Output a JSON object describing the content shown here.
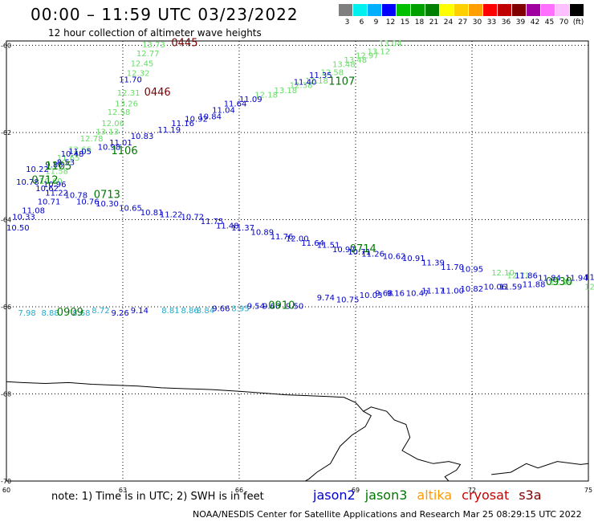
{
  "header": {
    "title": "00:00 – 11:59 UTC 03/23/2022",
    "subtitle": "12 hour collection of altimeter wave heights"
  },
  "colorscale": {
    "colors": [
      "#7f7f7f",
      "#00f0f0",
      "#00b0ff",
      "#0000ff",
      "#00c000",
      "#00a000",
      "#008000",
      "#ffff00",
      "#ffd000",
      "#ffa000",
      "#ff0000",
      "#c00000",
      "#800000",
      "#a000a0",
      "#ff70ff",
      "#ffc0ff",
      "#000000"
    ],
    "labels": [
      "3",
      "6",
      "9",
      "12",
      "15",
      "18",
      "21",
      "24",
      "27",
      "30",
      "33",
      "36",
      "39",
      "42",
      "45",
      "70",
      "(ft)"
    ]
  },
  "map": {
    "lat_labels": [
      "-60",
      "-62",
      "-64",
      "-66",
      "-68",
      "-70"
    ],
    "lon_labels": [
      "60",
      "63",
      "66",
      "69",
      "72",
      "75"
    ],
    "track_colors": {
      "jason2": "#0000c8",
      "jason3": "#007800",
      "altika": "#ff9900",
      "cryosat": "#c80000",
      "s3a": "#7a0000",
      "light": "#66dd66",
      "cyan": "#22aacc"
    },
    "time_labels": [
      {
        "text": "0445",
        "lon": 64.25,
        "lat": -60.02,
        "color": "s3a"
      },
      {
        "text": "0446",
        "lon": 63.55,
        "lat": -61.15,
        "color": "s3a"
      },
      {
        "text": "1107",
        "lon": 68.3,
        "lat": -60.9,
        "color": "jason3"
      },
      {
        "text": "1106",
        "lon": 62.7,
        "lat": -62.5,
        "color": "jason3"
      },
      {
        "text": "1105",
        "lon": 61.0,
        "lat": -62.85,
        "color": "jason3"
      },
      {
        "text": "0712",
        "lon": 60.65,
        "lat": -63.17,
        "color": "jason3"
      },
      {
        "text": "0713",
        "lon": 62.25,
        "lat": -63.5,
        "color": "jason3"
      },
      {
        "text": "0714",
        "lon": 68.85,
        "lat": -64.75,
        "color": "jason3"
      },
      {
        "text": "0909",
        "lon": 61.3,
        "lat": -66.2,
        "color": "jason3"
      },
      {
        "text": "0910",
        "lon": 66.75,
        "lat": -66.05,
        "color": "jason3"
      },
      {
        "text": "0930",
        "lon": 73.9,
        "lat": -65.5,
        "color": "jason3"
      }
    ],
    "tracks": [
      {
        "color": "light",
        "points": [
          {
            "lon": 63.5,
            "lat": -60.05,
            "v": "13.73"
          },
          {
            "lon": 63.35,
            "lat": -60.25,
            "v": "12.77"
          },
          {
            "lon": 63.2,
            "lat": -60.48,
            "v": "12.45"
          },
          {
            "lon": 63.1,
            "lat": -60.7,
            "v": "12.32"
          },
          {
            "lon": 62.85,
            "lat": -61.15,
            "v": "12.31"
          },
          {
            "lon": 62.8,
            "lat": -61.4,
            "v": "13.26"
          },
          {
            "lon": 62.6,
            "lat": -61.6,
            "v": "12.58"
          },
          {
            "lon": 62.45,
            "lat": -61.85,
            "v": "12.06"
          },
          {
            "lon": 62.3,
            "lat": -62.05,
            "v": "13.13"
          },
          {
            "lon": 61.9,
            "lat": -62.2,
            "v": "12.78"
          },
          {
            "lon": 61.6,
            "lat": -62.45,
            "v": "12.66"
          },
          {
            "lon": 61.3,
            "lat": -62.65,
            "v": "11.65"
          },
          {
            "lon": 61.0,
            "lat": -62.95,
            "v": "11.58"
          },
          {
            "lon": 60.85,
            "lat": -63.18,
            "v": "10.60"
          },
          {
            "lon": 66.4,
            "lat": -61.2,
            "v": "12.18"
          },
          {
            "lon": 66.9,
            "lat": -61.1,
            "v": "13.18"
          },
          {
            "lon": 67.3,
            "lat": -60.98,
            "v": "12.38"
          },
          {
            "lon": 67.7,
            "lat": -60.88,
            "v": "12.18"
          },
          {
            "lon": 68.1,
            "lat": -60.68,
            "v": "12.58"
          },
          {
            "lon": 68.4,
            "lat": -60.5,
            "v": "13.48"
          },
          {
            "lon": 68.7,
            "lat": -60.4,
            "v": "13.48"
          },
          {
            "lon": 69.0,
            "lat": -60.3,
            "v": "12.97"
          },
          {
            "lon": 69.3,
            "lat": -60.2,
            "v": "13.12"
          },
          {
            "lon": 69.6,
            "lat": -60.02,
            "v": "13.04"
          },
          {
            "lon": 72.5,
            "lat": -65.28,
            "v": "12.10"
          },
          {
            "lon": 72.9,
            "lat": -65.35,
            "v": "12.71"
          },
          {
            "lon": 74.0,
            "lat": -65.5,
            "v": "11.49"
          },
          {
            "lon": 74.9,
            "lat": -65.6,
            "v": "12.3"
          }
        ]
      },
      {
        "color": "jason2",
        "points": [
          {
            "lon": 62.9,
            "lat": -60.85,
            "v": "11.70"
          },
          {
            "lon": 63.2,
            "lat": -62.15,
            "v": "10.83"
          },
          {
            "lon": 62.65,
            "lat": -62.3,
            "v": "11.01"
          },
          {
            "lon": 62.35,
            "lat": -62.4,
            "v": "10.98"
          },
          {
            "lon": 61.6,
            "lat": -62.5,
            "v": "11.05"
          },
          {
            "lon": 61.4,
            "lat": -62.55,
            "v": "10.48"
          },
          {
            "lon": 63.9,
            "lat": -62.0,
            "v": "11.19"
          },
          {
            "lon": 64.25,
            "lat": -61.85,
            "v": "11.16"
          },
          {
            "lon": 64.6,
            "lat": -61.75,
            "v": "10.92"
          },
          {
            "lon": 64.95,
            "lat": -61.7,
            "v": "10.84"
          },
          {
            "lon": 65.3,
            "lat": -61.55,
            "v": "11.04"
          },
          {
            "lon": 65.6,
            "lat": -61.4,
            "v": "11.64"
          },
          {
            "lon": 66.0,
            "lat": -61.3,
            "v": "11.09"
          },
          {
            "lon": 67.4,
            "lat": -60.9,
            "v": "11.40"
          },
          {
            "lon": 67.8,
            "lat": -60.75,
            "v": "11.35"
          },
          {
            "lon": 60.5,
            "lat": -62.9,
            "v": "10.22"
          },
          {
            "lon": 61.0,
            "lat": -62.8,
            "v": "9.88"
          },
          {
            "lon": 61.3,
            "lat": -62.75,
            "v": "8.53"
          },
          {
            "lon": 60.25,
            "lat": -63.2,
            "v": "10.78"
          },
          {
            "lon": 60.95,
            "lat": -63.25,
            "v": "10.96"
          },
          {
            "lon": 60.75,
            "lat": -63.35,
            "v": "10.62"
          },
          {
            "lon": 61.0,
            "lat": -63.45,
            "v": "11.22"
          },
          {
            "lon": 61.5,
            "lat": -63.5,
            "v": "10.78"
          },
          {
            "lon": 61.8,
            "lat": -63.65,
            "v": "10.76"
          },
          {
            "lon": 60.8,
            "lat": -63.65,
            "v": "10.71"
          },
          {
            "lon": 62.3,
            "lat": -63.7,
            "v": "10.30"
          },
          {
            "lon": 62.9,
            "lat": -63.8,
            "v": "10.65"
          },
          {
            "lon": 63.45,
            "lat": -63.9,
            "v": "10.81"
          },
          {
            "lon": 63.95,
            "lat": -63.95,
            "v": "11.22"
          },
          {
            "lon": 64.5,
            "lat": -64.0,
            "v": "10.72"
          },
          {
            "lon": 65.0,
            "lat": -64.1,
            "v": "11.75"
          },
          {
            "lon": 65.4,
            "lat": -64.2,
            "v": "11.48"
          },
          {
            "lon": 65.8,
            "lat": -64.25,
            "v": "11.37"
          },
          {
            "lon": 66.3,
            "lat": -64.35,
            "v": "10.89"
          },
          {
            "lon": 66.8,
            "lat": -64.45,
            "v": "11.76"
          },
          {
            "lon": 67.2,
            "lat": -64.5,
            "v": "12.00"
          },
          {
            "lon": 67.6,
            "lat": -64.6,
            "v": "11.64"
          },
          {
            "lon": 68.0,
            "lat": -64.65,
            "v": "11.51"
          },
          {
            "lon": 68.4,
            "lat": -64.75,
            "v": "10.97"
          },
          {
            "lon": 68.8,
            "lat": -64.8,
            "v": "10.71"
          },
          {
            "lon": 69.15,
            "lat": -64.85,
            "v": "11.26"
          },
          {
            "lon": 69.7,
            "lat": -64.9,
            "v": "10.62"
          },
          {
            "lon": 70.2,
            "lat": -64.95,
            "v": "10.91"
          },
          {
            "lon": 70.7,
            "lat": -65.05,
            "v": "11.39"
          },
          {
            "lon": 71.2,
            "lat": -65.15,
            "v": "11.70"
          },
          {
            "lon": 71.7,
            "lat": -65.2,
            "v": "10.95"
          },
          {
            "lon": 60.4,
            "lat": -63.85,
            "v": "11.08"
          },
          {
            "lon": 60.15,
            "lat": -64.0,
            "v": "10.33"
          },
          {
            "lon": 60.0,
            "lat": -64.25,
            "v": "10.50"
          },
          {
            "lon": 68.0,
            "lat": -65.85,
            "v": "9.74"
          },
          {
            "lon": 68.5,
            "lat": -65.9,
            "v": "10.75"
          },
          {
            "lon": 69.1,
            "lat": -65.8,
            "v": "10.03"
          },
          {
            "lon": 69.5,
            "lat": -65.75,
            "v": "9.68"
          },
          {
            "lon": 69.8,
            "lat": -65.75,
            "v": "9.16"
          },
          {
            "lon": 70.3,
            "lat": -65.75,
            "v": "10.47"
          },
          {
            "lon": 70.7,
            "lat": -65.7,
            "v": "11.17"
          },
          {
            "lon": 71.2,
            "lat": -65.7,
            "v": "11.00"
          },
          {
            "lon": 71.7,
            "lat": -65.65,
            "v": "10.82"
          },
          {
            "lon": 72.3,
            "lat": -65.6,
            "v": "10.06"
          },
          {
            "lon": 72.7,
            "lat": -65.6,
            "v": "11.59"
          },
          {
            "lon": 73.3,
            "lat": -65.55,
            "v": "11.88"
          },
          {
            "lon": 73.1,
            "lat": -65.35,
            "v": "11.86"
          },
          {
            "lon": 73.7,
            "lat": -65.4,
            "v": "11.84"
          },
          {
            "lon": 74.4,
            "lat": -65.4,
            "v": "11.94"
          },
          {
            "lon": 74.9,
            "lat": -65.38,
            "v": "11.4"
          }
        ]
      },
      {
        "color": "cyan",
        "points": [
          {
            "lon": 60.3,
            "lat": -66.2,
            "v": "7.98"
          },
          {
            "lon": 60.9,
            "lat": -66.2,
            "v": "8.88"
          },
          {
            "lon": 61.7,
            "lat": -66.2,
            "v": "8.68"
          },
          {
            "lon": 62.2,
            "lat": -66.15,
            "v": "8.72"
          },
          {
            "lon": 64.0,
            "lat": -66.15,
            "v": "8.81"
          },
          {
            "lon": 64.5,
            "lat": -66.15,
            "v": "8.86"
          },
          {
            "lon": 64.9,
            "lat": -66.15,
            "v": "8.84"
          },
          {
            "lon": 65.8,
            "lat": -66.1,
            "v": "8.95"
          }
        ]
      },
      {
        "color": "jason2",
        "points": [
          {
            "lon": 62.7,
            "lat": -66.2,
            "v": "9.26"
          },
          {
            "lon": 63.2,
            "lat": -66.15,
            "v": "9.14"
          },
          {
            "lon": 65.3,
            "lat": -66.1,
            "v": "9.66"
          },
          {
            "lon": 66.2,
            "lat": -66.05,
            "v": "9.54"
          },
          {
            "lon": 66.6,
            "lat": -66.05,
            "v": "9.60"
          },
          {
            "lon": 67.2,
            "lat": -66.05,
            "v": "9.50"
          }
        ]
      }
    ],
    "coastlines": [
      [
        [
          60,
          -67.72
        ],
        [
          60.4,
          -67.74
        ],
        [
          61,
          -67.76
        ],
        [
          61.6,
          -67.74
        ],
        [
          62.2,
          -67.78
        ],
        [
          62.8,
          -67.8
        ],
        [
          63.4,
          -67.82
        ],
        [
          64.0,
          -67.86
        ],
        [
          64.6,
          -67.88
        ],
        [
          65.3,
          -67.9
        ],
        [
          66.0,
          -67.94
        ],
        [
          66.6,
          -67.98
        ],
        [
          67.2,
          -68.02
        ],
        [
          67.8,
          -68.04
        ],
        [
          68.3,
          -68.06
        ],
        [
          68.7,
          -68.08
        ],
        [
          69.0,
          -68.2
        ],
        [
          69.2,
          -68.4
        ],
        [
          69.4,
          -68.5
        ],
        [
          69.25,
          -68.75
        ],
        [
          68.9,
          -68.95
        ],
        [
          68.6,
          -69.2
        ],
        [
          68.35,
          -69.6
        ],
        [
          68.0,
          -69.8
        ],
        [
          67.8,
          -69.95
        ],
        [
          67.7,
          -70.0
        ]
      ],
      [
        [
          69.2,
          -68.4
        ],
        [
          69.4,
          -68.3
        ],
        [
          69.8,
          -68.4
        ],
        [
          70.0,
          -68.6
        ],
        [
          70.3,
          -68.7
        ],
        [
          70.4,
          -69.0
        ],
        [
          70.2,
          -69.3
        ],
        [
          70.6,
          -69.5
        ],
        [
          71.0,
          -69.6
        ],
        [
          71.4,
          -69.55
        ],
        [
          71.7,
          -69.62
        ],
        [
          71.6,
          -69.75
        ],
        [
          71.3,
          -69.9
        ],
        [
          71.4,
          -70.0
        ]
      ],
      [
        [
          72.5,
          -69.85
        ],
        [
          73.0,
          -69.8
        ],
        [
          73.4,
          -69.6
        ],
        [
          73.7,
          -69.7
        ],
        [
          74.2,
          -69.55
        ],
        [
          74.8,
          -69.62
        ],
        [
          75,
          -69.6
        ]
      ]
    ]
  },
  "footer": {
    "note": "note:  1) Time is in UTC;  2) SWH is in feet",
    "legend": [
      {
        "name": "jason2",
        "color": "#0000c8"
      },
      {
        "name": "jason3",
        "color": "#007800"
      },
      {
        "name": "altika",
        "color": "#ff9900"
      },
      {
        "name": "cryosat",
        "color": "#c80000"
      },
      {
        "name": "s3a",
        "color": "#7a0000"
      }
    ],
    "credit": "NOAA/NESDIS Center for Satellite Applications and Research     Mar 25 08:29:15 UTC 2022"
  }
}
